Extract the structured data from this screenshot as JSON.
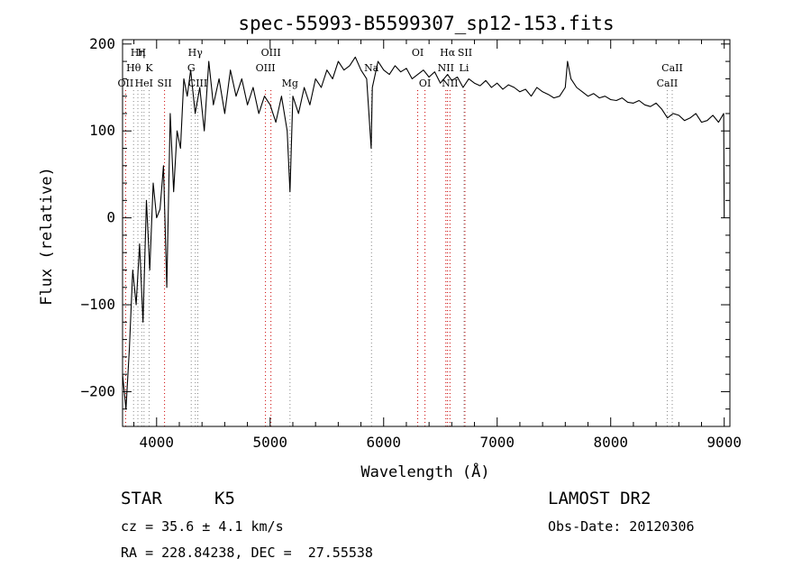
{
  "chart_data": {
    "type": "line",
    "title": "spec-55993-B5599307_sp12-153.fits",
    "xlabel": "Wavelength (Å)",
    "ylabel": "Flux (relative)",
    "xlim": [
      3700,
      9050
    ],
    "ylim": [
      -240,
      205
    ],
    "xticks": [
      4000,
      5000,
      6000,
      7000,
      8000,
      9000
    ],
    "yticks": [
      -200,
      -100,
      0,
      100,
      200
    ],
    "grid": false,
    "series": [
      {
        "color": "#000000",
        "x": [
          3700,
          3730,
          3760,
          3790,
          3820,
          3850,
          3880,
          3910,
          3940,
          3970,
          4000,
          4030,
          4060,
          4090,
          4120,
          4150,
          4180,
          4210,
          4240,
          4270,
          4300,
          4340,
          4380,
          4420,
          4460,
          4500,
          4550,
          4600,
          4650,
          4700,
          4750,
          4800,
          4850,
          4900,
          4950,
          5000,
          5050,
          5100,
          5150,
          5175,
          5200,
          5250,
          5300,
          5350,
          5400,
          5450,
          5500,
          5550,
          5600,
          5650,
          5700,
          5750,
          5800,
          5850,
          5890,
          5900,
          5950,
          6000,
          6050,
          6100,
          6150,
          6200,
          6250,
          6300,
          6350,
          6400,
          6450,
          6500,
          6563,
          6600,
          6650,
          6700,
          6750,
          6800,
          6850,
          6900,
          6950,
          7000,
          7050,
          7100,
          7150,
          7200,
          7250,
          7300,
          7350,
          7400,
          7450,
          7500,
          7550,
          7600,
          7620,
          7650,
          7700,
          7750,
          7800,
          7850,
          7900,
          7950,
          8000,
          8050,
          8100,
          8150,
          8200,
          8250,
          8300,
          8350,
          8400,
          8450,
          8500,
          8550,
          8600,
          8650,
          8700,
          8750,
          8800,
          8850,
          8900,
          8950,
          8995,
          9000
        ],
        "y": [
          -180,
          -220,
          -150,
          -60,
          -100,
          -30,
          -120,
          20,
          -60,
          40,
          0,
          10,
          60,
          -80,
          120,
          30,
          100,
          80,
          160,
          140,
          170,
          120,
          150,
          100,
          180,
          130,
          160,
          120,
          170,
          140,
          160,
          130,
          150,
          120,
          140,
          130,
          110,
          140,
          100,
          30,
          140,
          120,
          150,
          130,
          160,
          150,
          170,
          160,
          180,
          170,
          175,
          185,
          170,
          160,
          80,
          150,
          180,
          170,
          165,
          175,
          168,
          172,
          160,
          165,
          170,
          162,
          168,
          155,
          165,
          158,
          162,
          150,
          160,
          155,
          152,
          158,
          150,
          155,
          148,
          153,
          150,
          145,
          148,
          140,
          150,
          145,
          142,
          138,
          140,
          150,
          180,
          160,
          150,
          145,
          140,
          143,
          138,
          140,
          136,
          135,
          138,
          133,
          132,
          135,
          130,
          128,
          132,
          125,
          115,
          120,
          118,
          112,
          115,
          120,
          110,
          112,
          118,
          110,
          120,
          0
        ]
      }
    ],
    "lines": [
      {
        "label": "Hη",
        "wl": 3835,
        "row": 1
      },
      {
        "label": "H",
        "wl": 3869,
        "row": 1
      },
      {
        "label": "Hθ",
        "wl": 3797,
        "row": 2
      },
      {
        "label": "K",
        "wl": 3934,
        "row": 2
      },
      {
        "label": "OII",
        "wl": 3727,
        "row": 3
      },
      {
        "label": "HeI",
        "wl": 3889,
        "row": 3
      },
      {
        "label": "SII",
        "wl": 4070,
        "row": 3
      },
      {
        "label": "Hγ",
        "wl": 4341,
        "row": 1
      },
      {
        "label": "G",
        "wl": 4305,
        "row": 2
      },
      {
        "label": "CIII",
        "wl": 4363,
        "row": 3
      },
      {
        "label": "OIII",
        "wl": 5007,
        "row": 1
      },
      {
        "label": "OIII",
        "wl": 4959,
        "row": 2
      },
      {
        "label": "Mg",
        "wl": 5175,
        "row": 3
      },
      {
        "label": "Na",
        "wl": 5893,
        "row": 2
      },
      {
        "label": "OI",
        "wl": 6300,
        "row": 1
      },
      {
        "label": "OI",
        "wl": 6364,
        "row": 3
      },
      {
        "label": "Hα",
        "wl": 6563,
        "row": 1
      },
      {
        "label": "SII",
        "wl": 6716,
        "row": 1
      },
      {
        "label": "NII",
        "wl": 6548,
        "row": 2
      },
      {
        "label": "Li",
        "wl": 6708,
        "row": 2
      },
      {
        "label": "NII",
        "wl": 6584,
        "row": 3
      },
      {
        "label": "CaII",
        "wl": 8542,
        "row": 2
      },
      {
        "label": "CaII",
        "wl": 8498,
        "row": 3
      }
    ],
    "line_colors": {
      "absorption": "#888888",
      "emission": "#cc0000"
    }
  },
  "info": {
    "class": "STAR",
    "subclass": "K5",
    "survey": "LAMOST DR2",
    "redshift": "cz = 35.6 ± 4.1 km/s",
    "obs_date": "Obs-Date: 20120306",
    "coords": "RA = 228.84238, DEC =  27.55538"
  }
}
